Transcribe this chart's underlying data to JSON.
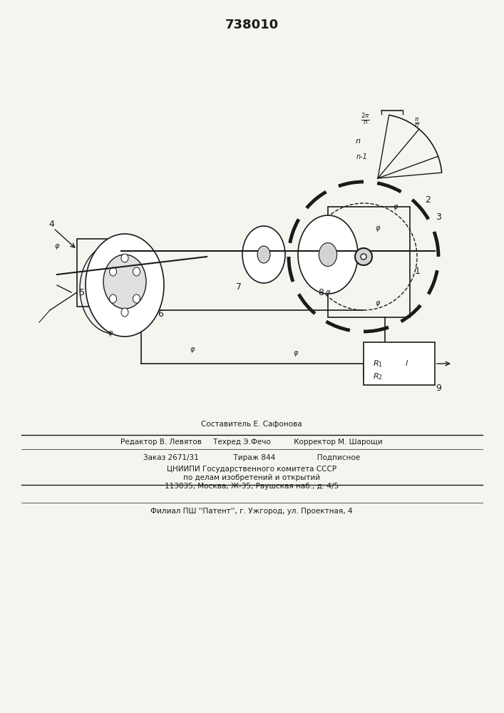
{
  "patent_number": "738010",
  "bg_color": "#f5f5f0",
  "line_color": "#1a1a1a",
  "title_fontsize": 13,
  "body_fontsize": 8,
  "footer_line1": "Редактор В. Левятов     Техред Э.Фечо          Корректор М. Шарощи",
  "footer_line2": "Заказ 2671/31               Тираж 844                  Подписное",
  "footer_line3": "ЦНИИПИ Государственного комитета СССР",
  "footer_line4": "по делам изобретений и открытий",
  "footer_line5": "113035, Москва, Ж-35, Раушская наб., д. 4/5",
  "footer_line6": "Филиал ПШ ''Патент'', г. Ужгород, ул. Проектная, 4",
  "composer_line": "Составитель Е. Сафонова"
}
